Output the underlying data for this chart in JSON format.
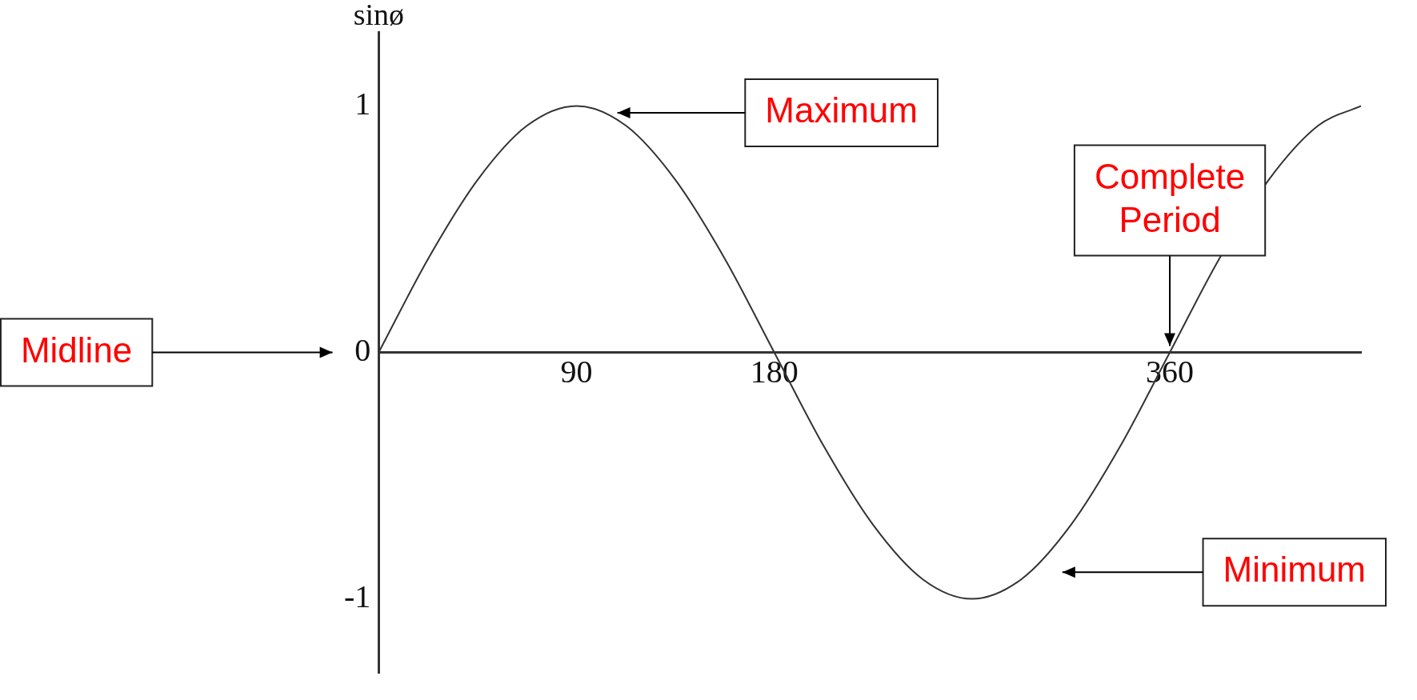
{
  "chart_data": {
    "type": "line",
    "ylabel": "sinø",
    "x": [
      0,
      22.5,
      45,
      67.5,
      90,
      112.5,
      135,
      157.5,
      180,
      202.5,
      225,
      247.5,
      270,
      292.5,
      315,
      337.5,
      360,
      382.5,
      405,
      427.5,
      447
    ],
    "series": [
      {
        "color": "#333333",
        "values": [
          0,
          0.38,
          0.7,
          0.92,
          1,
          0.92,
          0.7,
          0.38,
          0,
          -0.38,
          -0.7,
          -0.92,
          -1,
          -0.92,
          -0.7,
          -0.38,
          0,
          0.38,
          0.7,
          0.92,
          1
        ]
      }
    ],
    "xlim": [
      0,
      447
    ],
    "xticks": [
      90,
      180,
      360
    ],
    "ylim": [
      -1.3,
      1.3
    ],
    "yticks": [
      -1,
      0,
      1
    ],
    "grid": false,
    "legend": false,
    "marker": "none",
    "line_style": "solid",
    "annotations": [
      "Maximum",
      {
        "text": "Complete\nPeriod",
        "x": 360,
        "y": 0
      },
      "Minimum",
      "Midline"
    ]
  }
}
